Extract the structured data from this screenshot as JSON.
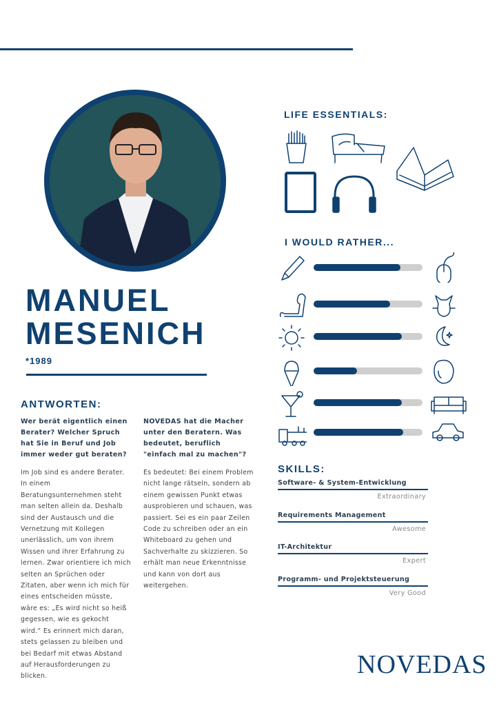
{
  "name": {
    "first": "MANUEL",
    "last": "MESENICH",
    "birth": "*1989"
  },
  "life_essentials": {
    "title": "LIFE ESSENTIALS:",
    "icons": [
      "fries-icon",
      "bed-icon",
      "book-icon",
      "tablet-icon",
      "headphones-icon"
    ]
  },
  "would_rather": {
    "title": "I WOULD RATHER...",
    "rows": [
      {
        "left": "pen-icon",
        "right": "mouse-icon",
        "value": 0.8
      },
      {
        "left": "dog-icon",
        "right": "cat-icon",
        "value": 0.7
      },
      {
        "left": "sun-icon",
        "right": "moon-icon",
        "value": 0.81
      },
      {
        "left": "ice-cream-icon",
        "right": "lemon-icon",
        "value": 0.4
      },
      {
        "left": "cocktail-icon",
        "right": "sofa-icon",
        "value": 0.81
      },
      {
        "left": "train-icon",
        "right": "car-icon",
        "value": 0.82
      }
    ]
  },
  "answers": {
    "title": "ANTWORTEN:",
    "items": [
      {
        "question": "Wer berät eigentlich einen Berater? Welcher Spruch hat Sie in Beruf und Job immer weder gut beraten?",
        "answer": "Im Job sind es andere Berater. In einem Beratungsunternehmen steht man selten allein da. Deshalb sind der Austausch und die Vernetzung mit Kollegen unerlässlich, um von ihrem Wissen und ihrer Erfahrung zu lernen. Zwar orientiere ich mich selten an Sprüchen oder Zitaten, aber wenn ich mich für eines entscheiden müsste, wäre es: „Es wird nicht so heiß gegessen, wie es gekocht wird.“ Es erinnert mich daran, stets gelassen zu bleiben und bei Bedarf mit etwas Abstand auf Herausforderungen zu blicken."
      },
      {
        "question": "NOVEDAS hat die Macher unter den Beratern. Was bedeutet, beruflich \"einfach mal zu machen\"?",
        "answer": "Es bedeutet: Bei einem Problem nicht lange rätseln, sondern ab einem gewissen Punkt etwas ausprobieren und schauen, was passiert. Sei es ein paar Zeilen Code zu schreiben oder an ein Whiteboard zu gehen und Sachverhalte zu skizzieren. So erhält man neue Erkenntnisse und kann von dort aus weitergehen."
      }
    ]
  },
  "skills": {
    "title": "SKILLS:",
    "items": [
      {
        "name": "Software- & System-Entwicklung",
        "level": "Extraordinary"
      },
      {
        "name": "Requirements Management",
        "level": "Awesome"
      },
      {
        "name": "IT-Architektur",
        "level": "Expert"
      },
      {
        "name": "Programm- und Projektsteuerung",
        "level": "Very Good"
      }
    ]
  },
  "logo": {
    "text": "NOVEDAS"
  },
  "colors": {
    "accent": "#0f4170",
    "bar_bg": "#cfcfcf",
    "photo_bg": "#1f4d52"
  }
}
